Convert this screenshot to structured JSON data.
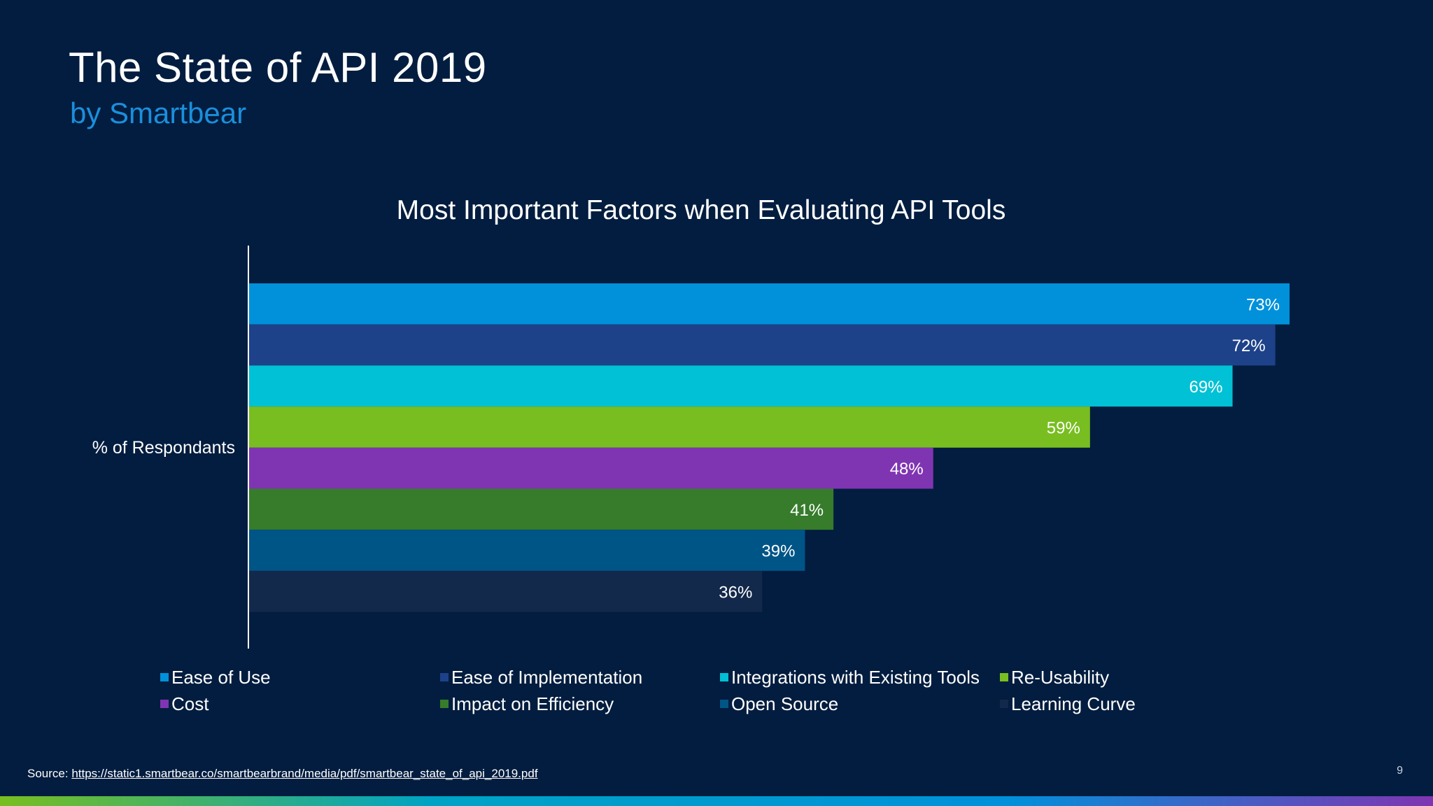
{
  "slide": {
    "title": "The State of API 2019",
    "subtitle": "by Smartbear",
    "source_label": "Source:",
    "source_url": "https://static1.smartbear.co/smartbearbrand/media/pdf/smartbear_state_of_api_2019.pdf",
    "page_number": "9"
  },
  "chart_data": {
    "type": "bar",
    "orientation": "horizontal",
    "title": "Most Important Factors when Evaluating API Tools",
    "ylabel": "% of Respondants",
    "xlabel": "",
    "xlim": [
      0,
      73
    ],
    "grid": false,
    "legend_position": "bottom",
    "series": [
      {
        "name": "Ease of Use",
        "value": 73,
        "label": "73%",
        "color": "#0091da"
      },
      {
        "name": "Ease of Implementation",
        "value": 72,
        "label": "72%",
        "color": "#1d428a"
      },
      {
        "name": "Integrations with Existing Tools",
        "value": 69,
        "label": "69%",
        "color": "#00c1d5"
      },
      {
        "name": "Re-Usability",
        "value": 59,
        "label": "59%",
        "color": "#78be20"
      },
      {
        "name": "Cost",
        "value": 48,
        "label": "48%",
        "color": "#7f35b2"
      },
      {
        "name": "Impact on Efficiency",
        "value": 41,
        "label": "41%",
        "color": "#367c2b"
      },
      {
        "name": "Open Source",
        "value": 39,
        "label": "39%",
        "color": "#005587"
      },
      {
        "name": "Learning Curve",
        "value": 36,
        "label": "36%",
        "color": "#13294b"
      }
    ]
  }
}
